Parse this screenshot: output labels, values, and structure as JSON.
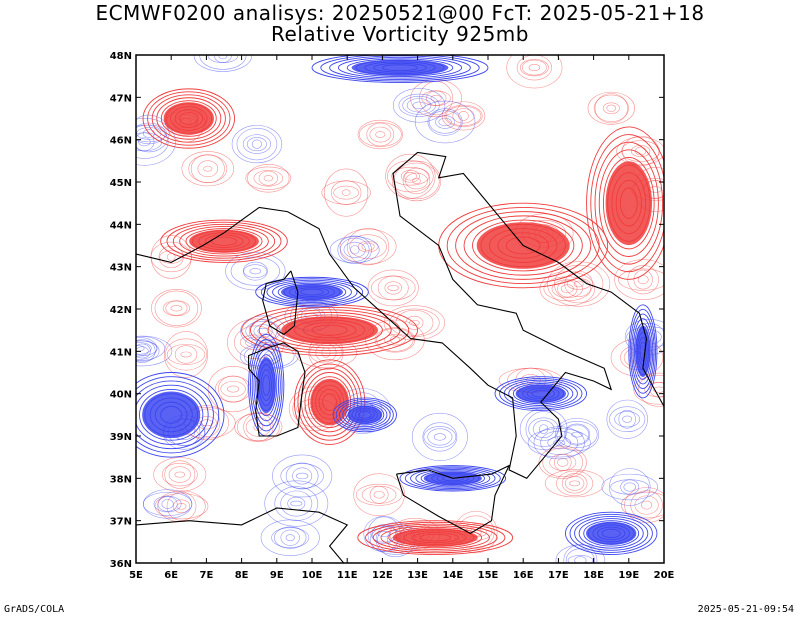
{
  "title_line1": "ECMWF0200 analisys: 20250521@00 FcT: 2025-05-21+18",
  "title_line2": "Relative Vorticity 925mb",
  "footer_left": "GrADS/COLA",
  "footer_right": "2025-05-21-09:54",
  "map": {
    "lon_range": [
      5,
      20
    ],
    "lat_range": [
      36,
      48
    ],
    "lon_ticks": [
      "5E",
      "6E",
      "7E",
      "8E",
      "9E",
      "10E",
      "11E",
      "12E",
      "13E",
      "14E",
      "15E",
      "16E",
      "17E",
      "18E",
      "19E",
      "20E"
    ],
    "lat_ticks": [
      "36N",
      "37N",
      "38N",
      "39N",
      "40N",
      "41N",
      "42N",
      "43N",
      "44N",
      "45N",
      "46N",
      "47N",
      "48N"
    ],
    "colors": {
      "positive_vorticity": "#f03c3c",
      "negative_vorticity": "#3c46f0",
      "coastline": "#000000",
      "frame": "#000000"
    },
    "fields": [
      {
        "name": "",
        "sign": "positive",
        "lon": 7.5,
        "lat": 43.6,
        "rx": 1.8,
        "ry": 0.5
      },
      {
        "name": "",
        "sign": "positive",
        "lon": 10.5,
        "lat": 41.5,
        "rx": 2.5,
        "ry": 0.6
      },
      {
        "name": "",
        "sign": "positive",
        "lon": 16.0,
        "lat": 43.5,
        "rx": 2.4,
        "ry": 1.0
      },
      {
        "name": "",
        "sign": "positive",
        "lon": 19.0,
        "lat": 44.5,
        "rx": 1.2,
        "ry": 1.8
      },
      {
        "name": "",
        "sign": "positive",
        "lon": 10.5,
        "lat": 39.8,
        "rx": 1.0,
        "ry": 1.0
      },
      {
        "name": "",
        "sign": "positive",
        "lon": 13.5,
        "lat": 36.6,
        "rx": 2.2,
        "ry": 0.4
      },
      {
        "name": "",
        "sign": "positive",
        "lon": 6.5,
        "lat": 46.5,
        "rx": 1.3,
        "ry": 0.7
      },
      {
        "name": "",
        "sign": "negative",
        "lon": 10.0,
        "lat": 42.4,
        "rx": 1.6,
        "ry": 0.35
      },
      {
        "name": "",
        "sign": "negative",
        "lon": 8.7,
        "lat": 40.2,
        "rx": 0.5,
        "ry": 1.2
      },
      {
        "name": "",
        "sign": "negative",
        "lon": 11.5,
        "lat": 39.5,
        "rx": 0.9,
        "ry": 0.4
      },
      {
        "name": "",
        "sign": "negative",
        "lon": 16.5,
        "lat": 40.0,
        "rx": 1.3,
        "ry": 0.4
      },
      {
        "name": "",
        "sign": "negative",
        "lon": 19.4,
        "lat": 41.0,
        "rx": 0.4,
        "ry": 1.1
      },
      {
        "name": "",
        "sign": "negative",
        "lon": 14.0,
        "lat": 38.0,
        "rx": 1.5,
        "ry": 0.3
      },
      {
        "name": "",
        "sign": "negative",
        "lon": 6.0,
        "lat": 39.5,
        "rx": 1.5,
        "ry": 1.0
      },
      {
        "name": "",
        "sign": "negative",
        "lon": 18.5,
        "lat": 36.7,
        "rx": 1.3,
        "ry": 0.5
      },
      {
        "name": "",
        "sign": "negative",
        "lon": 12.5,
        "lat": 47.7,
        "rx": 2.5,
        "ry": 0.35
      }
    ]
  }
}
